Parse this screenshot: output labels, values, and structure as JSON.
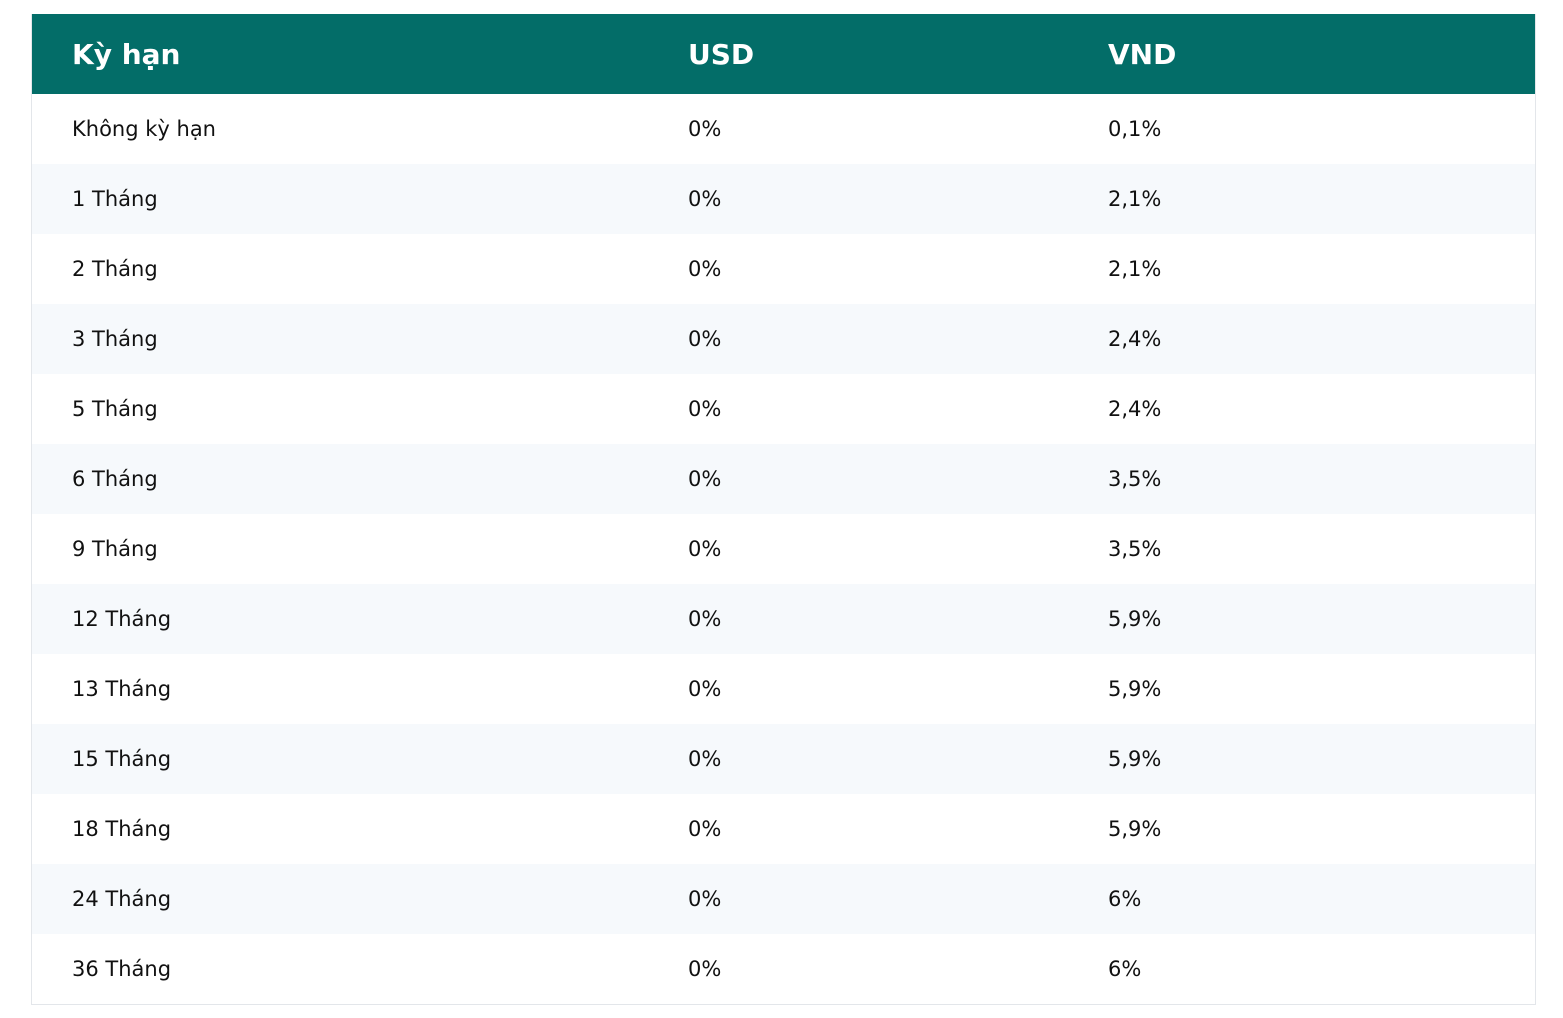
{
  "table": {
    "header": [
      "Kỳ hạn",
      "USD",
      "VND"
    ],
    "rows": [
      [
        "Không kỳ hạn",
        "0%",
        "0,1%"
      ],
      [
        "1 Tháng",
        "0%",
        "2,1%"
      ],
      [
        "2 Tháng",
        "0%",
        "2,1%"
      ],
      [
        "3 Tháng",
        "0%",
        "2,4%"
      ],
      [
        "5 Tháng",
        "0%",
        "2,4%"
      ],
      [
        "6 Tháng",
        "0%",
        "3,5%"
      ],
      [
        "9 Tháng",
        "0%",
        "3,5%"
      ],
      [
        "12 Tháng",
        "0%",
        "5,9%"
      ],
      [
        "13 Tháng",
        "0%",
        "5,9%"
      ],
      [
        "15 Tháng",
        "0%",
        "5,9%"
      ],
      [
        "18 Tháng",
        "0%",
        "5,9%"
      ],
      [
        "24 Tháng",
        "0%",
        "6%"
      ],
      [
        "36 Tháng",
        "0%",
        "6%"
      ]
    ]
  }
}
